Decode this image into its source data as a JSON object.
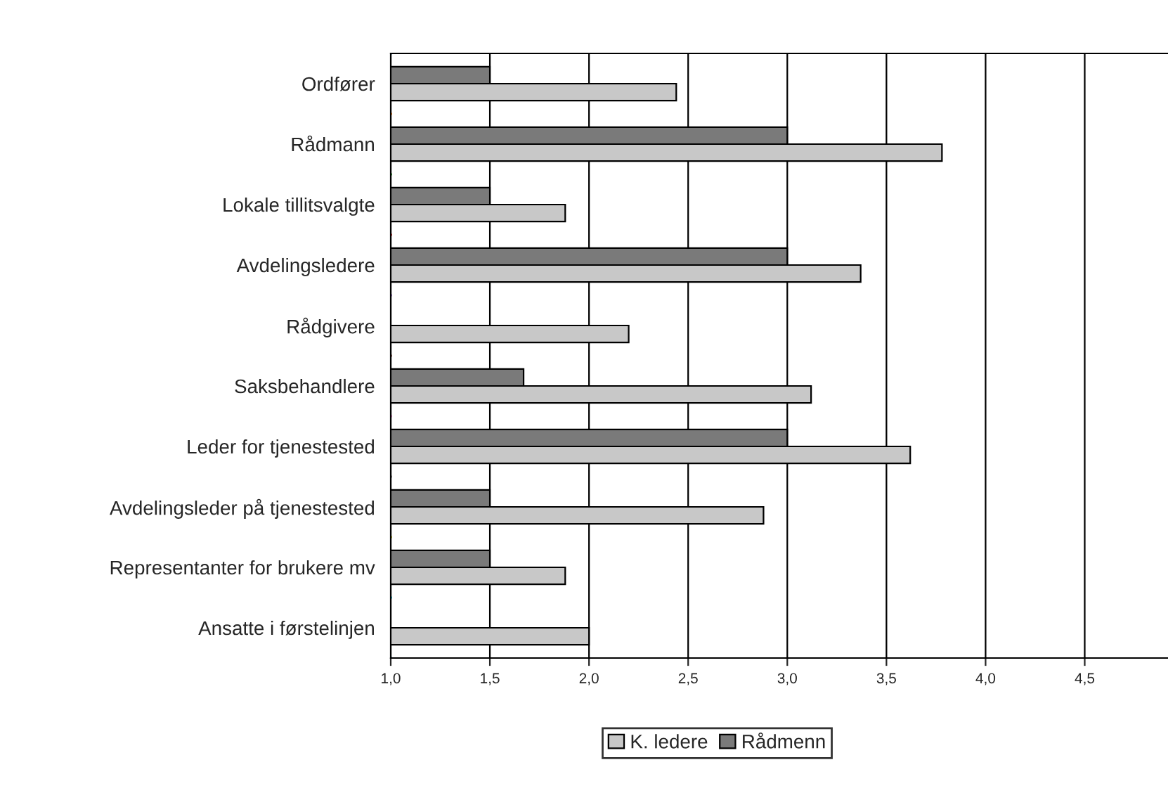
{
  "chart_data": {
    "type": "bar",
    "orientation": "horizontal",
    "categories": [
      "Ordfører",
      "Rådmann",
      "Lokale tillitsvalgte",
      "Avdelingsledere",
      "Rådgivere",
      "Saksbehandlere",
      "Leder for tjenestested",
      "Avdelingsleder på tjenestested",
      "Representanter for brukere mv",
      "Ansatte i førstelinjen"
    ],
    "series": [
      {
        "name": "K. ledere",
        "color": "#c8c8c8",
        "values": [
          2.44,
          3.78,
          1.88,
          3.37,
          2.2,
          3.12,
          3.62,
          2.88,
          1.88,
          2.0
        ]
      },
      {
        "name": "Rådmenn",
        "color": "#7a7a7a",
        "values": [
          1.5,
          3.0,
          1.5,
          3.0,
          null,
          1.67,
          3.0,
          1.5,
          1.5,
          null
        ]
      }
    ],
    "xlim": [
      1.0,
      4.92
    ],
    "xticks": [
      {
        "value": 1.0,
        "label": "1,0"
      },
      {
        "value": 1.5,
        "label": "1,5"
      },
      {
        "value": 2.0,
        "label": "2,0"
      },
      {
        "value": 2.5,
        "label": "2,5"
      },
      {
        "value": 3.0,
        "label": "3,0"
      },
      {
        "value": 3.5,
        "label": "3,5"
      },
      {
        "value": 4.0,
        "label": "4,0"
      },
      {
        "value": 4.5,
        "label": "4,5"
      }
    ],
    "grid": "x",
    "legend": "bottom"
  }
}
